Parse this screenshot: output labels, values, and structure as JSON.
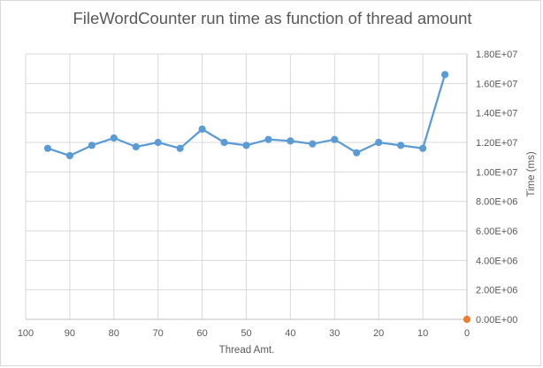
{
  "chart_data": {
    "type": "scatter",
    "title": "FileWordCounter run time as function of thread amount",
    "xlabel": "Thread Amt.",
    "ylabel": "Time (ms)",
    "xlim": [
      100,
      0
    ],
    "x_reversed": true,
    "ylim": [
      0,
      18000000
    ],
    "grid": true,
    "legend": "none",
    "x_ticks": [
      {
        "value": 100,
        "label": "100"
      },
      {
        "value": 90,
        "label": "90"
      },
      {
        "value": 80,
        "label": "80"
      },
      {
        "value": 70,
        "label": "70"
      },
      {
        "value": 60,
        "label": "60"
      },
      {
        "value": 50,
        "label": "50"
      },
      {
        "value": 40,
        "label": "40"
      },
      {
        "value": 30,
        "label": "30"
      },
      {
        "value": 20,
        "label": "20"
      },
      {
        "value": 10,
        "label": "10"
      },
      {
        "value": 0,
        "label": "0"
      }
    ],
    "y_ticks": [
      {
        "value": 0,
        "label": "0.00E+00"
      },
      {
        "value": 2000000,
        "label": "2.00E+06"
      },
      {
        "value": 4000000,
        "label": "4.00E+06"
      },
      {
        "value": 6000000,
        "label": "6.00E+06"
      },
      {
        "value": 8000000,
        "label": "8.00E+06"
      },
      {
        "value": 10000000,
        "label": "1.00E+07"
      },
      {
        "value": 12000000,
        "label": "1.20E+07"
      },
      {
        "value": 14000000,
        "label": "1.40E+07"
      },
      {
        "value": 16000000,
        "label": "1.60E+07"
      },
      {
        "value": 18000000,
        "label": "1.80E+07"
      }
    ],
    "series": [
      {
        "color": "#5b9bd5",
        "style": "line-markers",
        "x": [
          95,
          90,
          85,
          80,
          75,
          70,
          65,
          60,
          55,
          50,
          45,
          40,
          35,
          30,
          25,
          20,
          15,
          10,
          5
        ],
        "y": [
          11600000,
          11100000,
          11800000,
          12300000,
          11700000,
          12000000,
          11600000,
          12900000,
          12000000,
          11800000,
          12200000,
          12100000,
          11900000,
          12200000,
          11300000,
          12000000,
          11800000,
          11600000,
          16600000
        ]
      },
      {
        "color": "#ed7d31",
        "style": "markers",
        "x": [
          0
        ],
        "y": [
          0
        ]
      }
    ]
  }
}
